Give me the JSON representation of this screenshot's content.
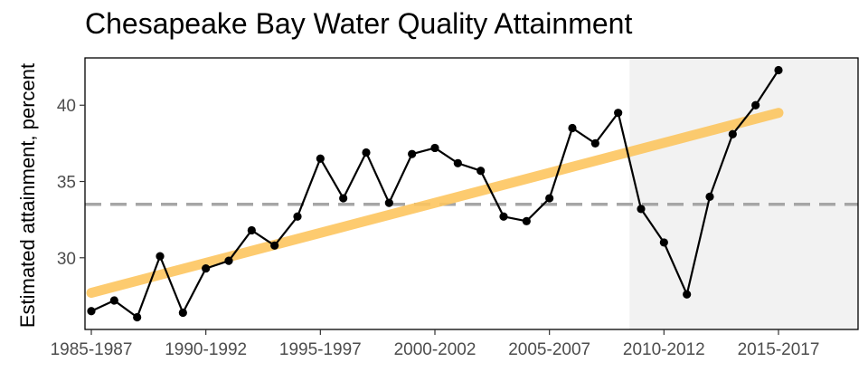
{
  "chart_data": {
    "type": "line",
    "title": "Chesapeake Bay Water Quality Attainment",
    "ylabel": "Estimated attainment, percent",
    "xlabel": "",
    "x_tick_labels": [
      "1985-1987",
      "1990-1992",
      "1995-1997",
      "2000-2002",
      "2005-2007",
      "2010-2012",
      "2015-2017"
    ],
    "y_ticks": [
      30,
      35,
      40
    ],
    "ylim": [
      25.3,
      43.1
    ],
    "categories": [
      "1985-1987",
      "1986-1988",
      "1987-1989",
      "1988-1990",
      "1989-1991",
      "1990-1992",
      "1991-1993",
      "1992-1994",
      "1993-1995",
      "1994-1996",
      "1995-1997",
      "1996-1998",
      "1997-1999",
      "1998-2000",
      "1999-2001",
      "2000-2002",
      "2001-2003",
      "2002-2004",
      "2003-2005",
      "2004-2006",
      "2005-2007",
      "2006-2008",
      "2007-2009",
      "2008-2010",
      "2009-2011",
      "2010-2012",
      "2011-2013",
      "2012-2014",
      "2013-2015",
      "2014-2016",
      "2015-2017"
    ],
    "series": [
      {
        "values": [
          26.5,
          27.2,
          26.1,
          30.1,
          26.4,
          29.3,
          29.8,
          31.8,
          30.8,
          32.7,
          36.5,
          33.9,
          36.9,
          33.6,
          36.8,
          37.2,
          36.2,
          35.7,
          32.7,
          32.4,
          33.9,
          38.5,
          37.5,
          39.5,
          33.2,
          31.0,
          27.6,
          34.0,
          38.1,
          40.0,
          42.3
        ],
        "color": "#000000"
      }
    ],
    "trend": {
      "start": 27.7,
      "end": 39.5,
      "color": "#fdc660"
    },
    "reference_line": {
      "value": 33.5,
      "style": "dashed",
      "color": "#a6a6a6"
    },
    "shaded_region": {
      "from_category": "2009-2011",
      "color": "#f2f2f2"
    },
    "grid": false,
    "legend": "none"
  }
}
